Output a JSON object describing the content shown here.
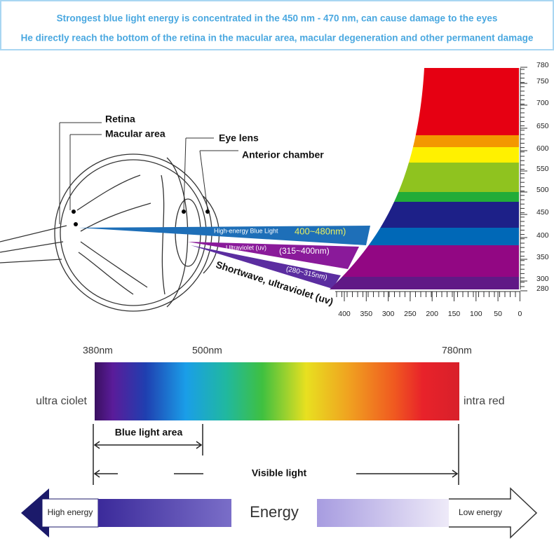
{
  "header": {
    "lines": [
      "Strongest blue light energy is concentrated in the 450 nm - 470 nm, can cause damage to the eyes",
      "He directly reach the bottom of the retina in the macular area, macular degeneration and other permanent damage"
    ]
  },
  "eye": {
    "labels": [
      "Retina",
      "Macular area",
      "Eye lens",
      "Anterior chamber"
    ]
  },
  "beams": [
    {
      "name": "High-energy Blue Light",
      "range": "400~480nm)"
    },
    {
      "name": "Ultraviolet (uv)",
      "range": "(315~400nm)"
    },
    {
      "name": "Shortwave, ultraviolet (uv)",
      "range": "(280~315nm)"
    }
  ],
  "scale": {
    "right": [
      "780",
      "750",
      "700",
      "650",
      "600",
      "550",
      "500",
      "450",
      "400",
      "350",
      "300",
      "280"
    ],
    "bottom": [
      "400",
      "350",
      "300",
      "250",
      "200",
      "150",
      "100",
      "50",
      "0"
    ]
  },
  "bar": {
    "labels": [
      "380nm",
      "500nm",
      "780nm"
    ],
    "left": "ultra ciolet",
    "right": "intra red",
    "blue_area": "Blue light area",
    "visible": "Visible light"
  },
  "energy": {
    "high": "High energy",
    "title": "Energy",
    "low": "Low energy"
  }
}
